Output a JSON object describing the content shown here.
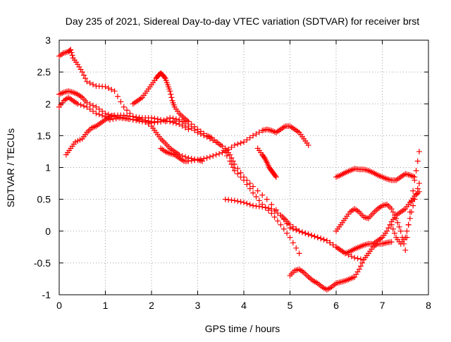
{
  "chart_data": {
    "type": "scatter",
    "title": "Day 235 of 2021, Sidereal Day-to-day VTEC variation (SDTVAR) for receiver brst",
    "xlabel": "GPS time / hours",
    "ylabel": "SDTVAR / TECUs",
    "xlim": [
      0,
      8
    ],
    "ylim": [
      -1,
      3
    ],
    "xticks": [
      "0",
      "1",
      "2",
      "3",
      "4",
      "5",
      "6",
      "7",
      "8"
    ],
    "yticks": [
      "-1",
      "-0.5",
      "0",
      "0.5",
      "1",
      "1.5",
      "2",
      "2.5",
      "3"
    ],
    "grid": true,
    "marker": "+",
    "color": "#ff0000",
    "series": [
      {
        "name": "s1",
        "x": [
          0.0,
          0.1,
          0.2,
          0.25,
          0.3,
          0.4,
          0.5,
          0.6,
          0.8,
          1.0,
          1.2,
          1.4,
          1.6,
          1.8,
          2.0,
          2.2,
          2.5,
          2.8,
          3.0,
          3.2,
          3.3,
          3.5,
          3.7,
          3.8,
          4.0,
          4.2,
          4.4,
          4.6,
          4.8,
          5.0,
          5.2
        ],
        "y": [
          2.75,
          2.8,
          2.82,
          2.85,
          2.72,
          2.62,
          2.5,
          2.35,
          2.28,
          2.27,
          2.2,
          1.95,
          1.8,
          1.75,
          1.72,
          1.72,
          1.73,
          1.72,
          1.6,
          1.5,
          1.47,
          1.35,
          1.1,
          0.95,
          0.8,
          0.6,
          0.42,
          0.28,
          0.1,
          -0.1,
          -0.35
        ]
      },
      {
        "name": "s2",
        "x": [
          0.0,
          0.1,
          0.2,
          0.3,
          0.4,
          0.5,
          0.6,
          0.8,
          1.0,
          1.2,
          1.4,
          1.6,
          1.8,
          2.0,
          2.2,
          2.4,
          2.6,
          2.8,
          3.0,
          3.2,
          3.4,
          3.6,
          3.7,
          3.8,
          4.0,
          4.2,
          4.5,
          4.8,
          5.0,
          5.2,
          5.4,
          5.6,
          5.8,
          6.0,
          6.2,
          6.4,
          6.6
        ],
        "y": [
          2.15,
          2.18,
          2.2,
          2.18,
          2.15,
          2.1,
          2.02,
          1.95,
          1.85,
          1.8,
          1.78,
          1.75,
          1.72,
          1.7,
          1.72,
          1.78,
          1.75,
          1.65,
          1.55,
          1.48,
          1.4,
          1.3,
          1.2,
          1.05,
          0.85,
          0.7,
          0.5,
          0.25,
          0.05,
          0.0,
          -0.05,
          -0.1,
          -0.15,
          -0.25,
          -0.35,
          -0.42,
          -0.45
        ]
      },
      {
        "name": "s3",
        "x": [
          0.0,
          0.1,
          0.2,
          0.3,
          0.4,
          0.6,
          0.8,
          1.0,
          1.1,
          1.3,
          1.5,
          1.8,
          2.0,
          2.1,
          2.2,
          2.3,
          2.4,
          2.5,
          2.6,
          2.8,
          3.0,
          3.1
        ],
        "y": [
          1.95,
          2.05,
          2.1,
          2.05,
          2.0,
          1.95,
          1.85,
          1.8,
          1.75,
          1.78,
          1.76,
          1.75,
          1.65,
          1.55,
          1.45,
          1.38,
          1.3,
          1.25,
          1.2,
          1.15,
          1.12,
          1.1
        ]
      },
      {
        "name": "s4",
        "x": [
          0.15,
          0.25,
          0.35,
          0.5,
          0.6,
          0.7,
          0.8,
          0.9,
          1.0,
          1.1,
          1.2,
          1.4,
          1.6,
          1.8,
          2.0,
          2.2,
          2.4,
          2.6,
          2.8
        ],
        "y": [
          1.2,
          1.3,
          1.4,
          1.45,
          1.55,
          1.62,
          1.65,
          1.7,
          1.75,
          1.8,
          1.82,
          1.82,
          1.8,
          1.78,
          1.78,
          1.75,
          1.72,
          1.68,
          1.6
        ]
      },
      {
        "name": "s5",
        "x": [
          1.6,
          1.7,
          1.8,
          1.9,
          2.0,
          2.1,
          2.15,
          2.2,
          2.25,
          2.3,
          2.35,
          2.4,
          2.45,
          2.5,
          2.6,
          2.7,
          2.8
        ],
        "y": [
          2.0,
          2.05,
          2.1,
          2.2,
          2.3,
          2.4,
          2.45,
          2.48,
          2.45,
          2.4,
          2.3,
          2.2,
          2.05,
          1.95,
          1.85,
          1.78,
          1.72
        ]
      },
      {
        "name": "s6",
        "x": [
          2.2,
          2.3,
          2.4,
          2.5,
          2.6,
          2.7,
          2.8,
          3.0,
          3.2,
          3.4,
          3.6,
          3.8,
          4.0,
          4.2,
          4.4,
          4.5,
          4.6,
          4.7,
          4.8,
          4.9,
          5.0,
          5.1,
          5.2,
          5.3,
          5.4
        ],
        "y": [
          1.3,
          1.25,
          1.22,
          1.2,
          1.15,
          1.1,
          1.1,
          1.12,
          1.15,
          1.2,
          1.25,
          1.35,
          1.4,
          1.5,
          1.58,
          1.6,
          1.58,
          1.55,
          1.6,
          1.65,
          1.65,
          1.6,
          1.55,
          1.45,
          1.35
        ]
      },
      {
        "name": "s7",
        "x": [
          4.3,
          4.4,
          4.45,
          4.5,
          4.55,
          4.6,
          4.65,
          4.7
        ],
        "y": [
          1.3,
          1.2,
          1.15,
          1.08,
          1.0,
          0.95,
          0.9,
          0.85
        ]
      },
      {
        "name": "s8",
        "x": [
          3.6,
          3.8,
          4.0,
          4.2,
          4.4,
          4.6,
          4.8,
          4.9,
          5.0,
          5.2,
          5.4,
          5.6,
          5.8,
          6.0,
          6.1,
          6.2,
          6.3,
          6.4,
          6.5,
          6.6,
          6.7,
          6.8,
          6.9,
          7.0,
          7.1,
          7.2,
          7.3,
          7.4,
          7.5,
          7.6,
          7.7,
          7.8
        ],
        "y": [
          0.5,
          0.48,
          0.45,
          0.4,
          0.38,
          0.35,
          0.25,
          0.18,
          0.1,
          0.0,
          -0.05,
          -0.1,
          -0.15,
          -0.25,
          -0.3,
          -0.35,
          -0.32,
          -0.28,
          -0.25,
          -0.22,
          -0.2,
          -0.2,
          -0.15,
          -0.1,
          0.0,
          0.15,
          0.25,
          0.3,
          0.35,
          0.45,
          0.55,
          0.62
        ]
      },
      {
        "name": "s9",
        "x": [
          6.0,
          6.1,
          6.2,
          6.3,
          6.4,
          6.5,
          6.6,
          6.7,
          6.8,
          6.9,
          7.0,
          7.1,
          7.2,
          7.3,
          7.4,
          7.5,
          7.6,
          7.7
        ],
        "y": [
          0.85,
          0.88,
          0.92,
          0.95,
          0.98,
          0.97,
          0.97,
          0.95,
          0.92,
          0.88,
          0.85,
          0.82,
          0.8,
          0.8,
          0.85,
          0.9,
          0.88,
          0.85
        ]
      },
      {
        "name": "s10",
        "x": [
          5.0,
          5.1,
          5.2,
          5.3,
          5.4,
          5.5,
          5.6,
          5.7,
          5.8,
          5.9,
          6.0,
          6.1,
          6.2,
          6.3,
          6.4,
          6.5,
          6.6,
          6.7,
          6.8,
          6.9,
          7.0,
          7.1,
          7.2
        ],
        "y": [
          -0.7,
          -0.62,
          -0.6,
          -0.65,
          -0.72,
          -0.78,
          -0.82,
          -0.88,
          -0.92,
          -0.88,
          -0.82,
          -0.8,
          -0.78,
          -0.75,
          -0.72,
          -0.6,
          -0.45,
          -0.35,
          -0.25,
          -0.2,
          -0.2,
          -0.18,
          -0.17
        ]
      },
      {
        "name": "s11",
        "x": [
          6.0,
          6.1,
          6.2,
          6.3,
          6.4,
          6.5,
          6.6,
          6.7,
          6.8,
          6.9,
          7.0,
          7.1,
          7.2,
          7.3,
          7.4,
          7.5,
          7.6,
          7.7,
          7.8
        ],
        "y": [
          0.0,
          0.1,
          0.2,
          0.3,
          0.35,
          0.3,
          0.22,
          0.2,
          0.28,
          0.35,
          0.4,
          0.42,
          0.35,
          0.2,
          0.0,
          -0.3,
          0.3,
          0.8,
          1.25
        ]
      },
      {
        "name": "s12",
        "x": [
          7.2,
          7.3,
          7.4,
          7.5,
          7.6,
          7.7,
          7.8
        ],
        "y": [
          0.1,
          -0.1,
          -0.2,
          -0.1,
          0.2,
          0.5,
          0.75
        ]
      }
    ]
  }
}
